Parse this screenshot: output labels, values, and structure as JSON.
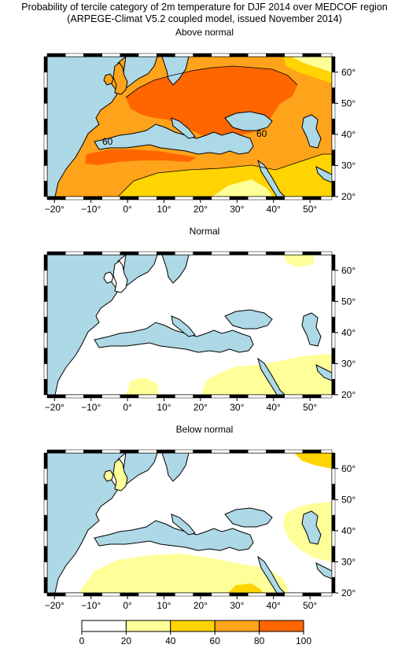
{
  "title_line1": "Probability of tercile category of 2m temperature for DJF 2014 over MEDCOF region",
  "title_line2": "(ARPEGE-Climat V5.2 coupled model, issued November 2014)",
  "panels": [
    {
      "title": "Above normal"
    },
    {
      "title": "Normal"
    },
    {
      "title": "Below normal"
    }
  ],
  "lon_ticks": [
    "−20°",
    "−10°",
    "0°",
    "10°",
    "20°",
    "30°",
    "40°",
    "50°"
  ],
  "lat_ticks": [
    "60°",
    "50°",
    "40°",
    "30°",
    "20°"
  ],
  "contour_label": "60",
  "colorbar": {
    "ticks": [
      "0",
      "20",
      "40",
      "60",
      "80",
      "100"
    ],
    "colors": [
      "#ffffff",
      "#ffff99",
      "#ffd400",
      "#ffa31a",
      "#ff6600"
    ]
  },
  "colors": {
    "sea": "#add8e6",
    "land_white": "#ffffff"
  }
}
